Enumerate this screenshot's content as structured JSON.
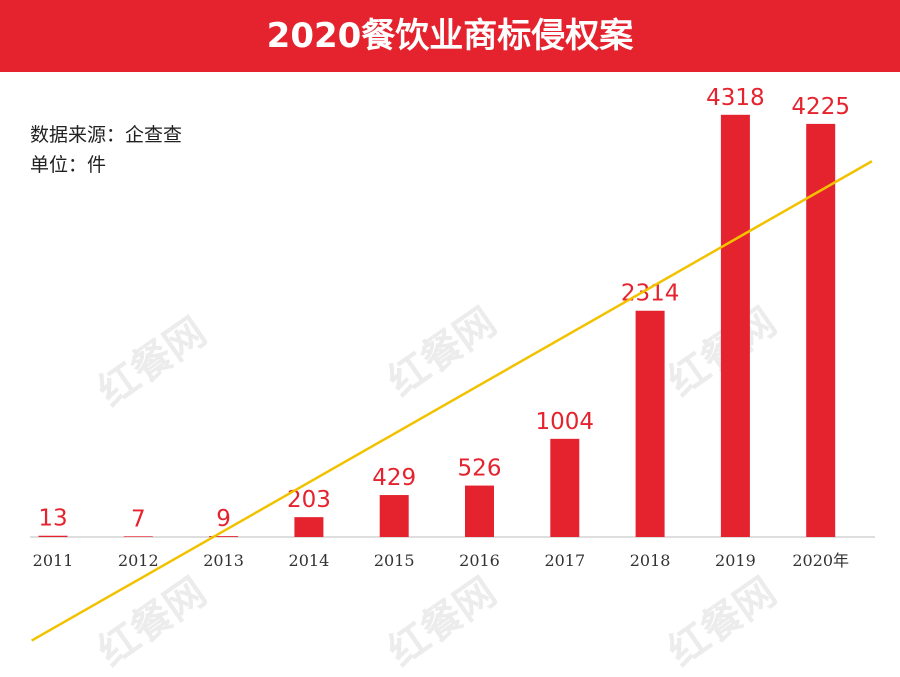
{
  "header": {
    "title": "2020餐饮业商标侵权案"
  },
  "source": {
    "data_source": "数据来源：企查查",
    "unit": "单位：件"
  },
  "watermark": {
    "text": "红餐网"
  },
  "colors": {
    "bar": "#e5232e",
    "trend": "#f2c200",
    "title_bg": "#e5232e",
    "label": "#e5232e"
  },
  "chart_data": {
    "type": "bar",
    "title": "2020餐饮业商标侵权案",
    "categories": [
      "2011",
      "2012",
      "2013",
      "2014",
      "2015",
      "2016",
      "2017",
      "2018",
      "2019",
      "2020年"
    ],
    "values": [
      13,
      7,
      9,
      203,
      429,
      526,
      1004,
      2314,
      4318,
      4225
    ],
    "xlabel": "",
    "ylabel": "",
    "ylim": [
      0,
      4500
    ],
    "grid": false,
    "legend": "none",
    "trendline": true
  }
}
